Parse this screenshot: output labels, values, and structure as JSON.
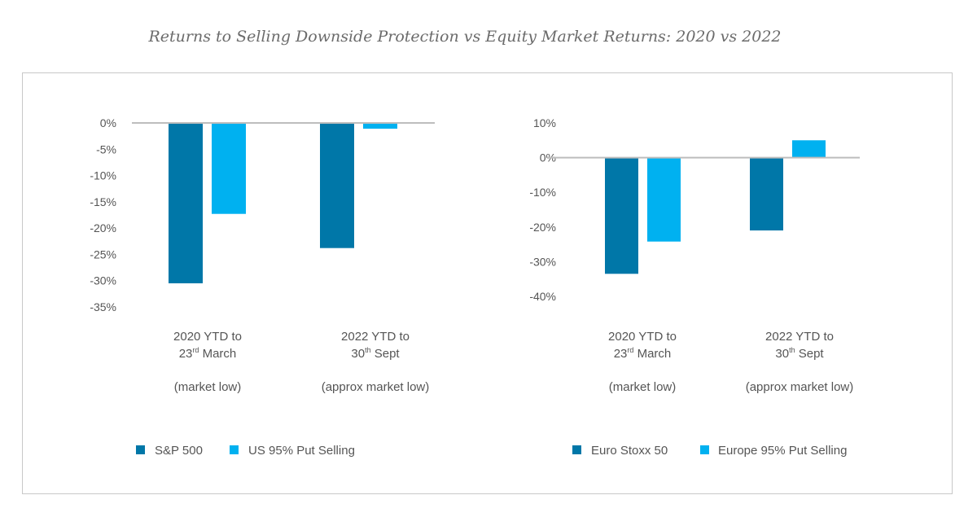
{
  "title": "Returns to Selling Downside Protection vs Equity Market Returns: 2020 vs 2022",
  "colors": {
    "dark": "#0077A8",
    "light": "#00B1F0",
    "axis": "#bdbdbd",
    "text": "#555555"
  },
  "chart_data": [
    {
      "type": "bar",
      "categories": [
        {
          "line1": "2020 YTD to",
          "line2_pre": "23",
          "line2_sup": "rd",
          "line2_post": " March",
          "line3": "(market low)"
        },
        {
          "line1": "2022 YTD to",
          "line2_pre": "30",
          "line2_sup": "th",
          "line2_post": " Sept",
          "line3": "(approx market low)"
        }
      ],
      "series": [
        {
          "name": "S&P 500",
          "color": "#0077A8",
          "values": [
            -30.5,
            -23.8
          ]
        },
        {
          "name": "US 95% Put Selling",
          "color": "#00B1F0",
          "values": [
            -17.3,
            -1.1
          ]
        }
      ],
      "ylim": [
        -35,
        0
      ],
      "yticks": [
        0,
        -5,
        -10,
        -15,
        -20,
        -25,
        -30,
        -35
      ],
      "ytick_labels": [
        "0%",
        "-5%",
        "-10%",
        "-15%",
        "-20%",
        "-25%",
        "-30%",
        "-35%"
      ],
      "legend_position": "bottom"
    },
    {
      "type": "bar",
      "categories": [
        {
          "line1": "2020 YTD to",
          "line2_pre": "23",
          "line2_sup": "rd",
          "line2_post": " March",
          "line3": "(market low)"
        },
        {
          "line1": "2022 YTD to",
          "line2_pre": "30",
          "line2_sup": "th",
          "line2_post": " Sept",
          "line3": "(approx market low)"
        }
      ],
      "series": [
        {
          "name": "Euro Stoxx 50",
          "color": "#0077A8",
          "values": [
            -33.5,
            -21.0
          ]
        },
        {
          "name": "Europe 95% Put Selling",
          "color": "#00B1F0",
          "values": [
            -24.2,
            5.0
          ]
        }
      ],
      "ylim": [
        -40,
        10
      ],
      "yticks": [
        10,
        0,
        -10,
        -20,
        -30,
        -40
      ],
      "ytick_labels": [
        "10%",
        "0%",
        "-10%",
        "-20%",
        "-30%",
        "-40%"
      ],
      "legend_position": "bottom"
    }
  ]
}
